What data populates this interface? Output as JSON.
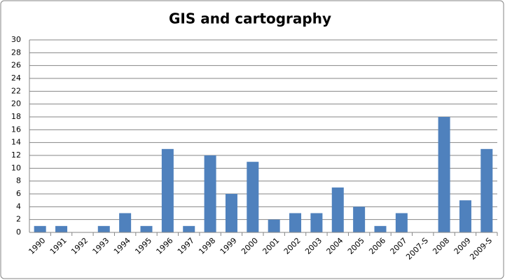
{
  "chart_data": {
    "type": "bar",
    "title": "GIS and cartography",
    "categories": [
      "1990",
      "1991",
      "1992",
      "1993",
      "1994",
      "1995",
      "1996",
      "1997",
      "1998",
      "1999",
      "2000",
      "2001",
      "2002",
      "2003",
      "2004",
      "2005",
      "2006",
      "2007",
      "2007-S",
      "2008",
      "2009",
      "2009-S"
    ],
    "values": [
      1,
      1,
      0,
      1,
      3,
      1,
      13,
      1,
      12,
      6,
      11,
      2,
      3,
      3,
      7,
      4,
      1,
      3,
      0,
      18,
      5,
      13
    ],
    "color": "#4f81bd",
    "ylim": [
      0,
      30
    ],
    "yticks": [
      0,
      2,
      4,
      6,
      8,
      10,
      12,
      14,
      16,
      18,
      20,
      22,
      24,
      26,
      28,
      30
    ],
    "grid": true
  }
}
